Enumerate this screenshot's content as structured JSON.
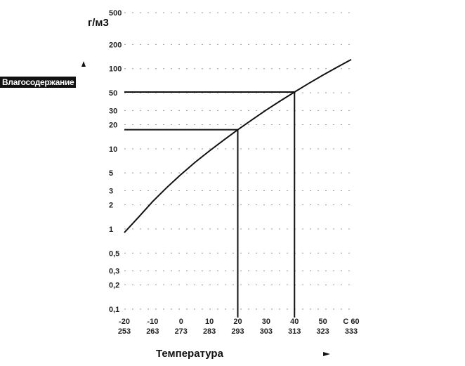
{
  "chart_data": {
    "type": "line",
    "ylabel": "Влагосодержание",
    "yunit": "г/м3",
    "xlabel": "Температура",
    "y_scale": "log",
    "ylim": [
      0.1,
      500
    ],
    "xlim": [
      -20,
      60
    ],
    "y_ticks": [
      {
        "value": 500,
        "label": "500"
      },
      {
        "value": 200,
        "label": "200"
      },
      {
        "value": 100,
        "label": "100"
      },
      {
        "value": 50,
        "label": "50"
      },
      {
        "value": 30,
        "label": "30"
      },
      {
        "value": 20,
        "label": "20"
      },
      {
        "value": 10,
        "label": "10"
      },
      {
        "value": 5,
        "label": "5"
      },
      {
        "value": 3,
        "label": "3"
      },
      {
        "value": 2,
        "label": "2"
      },
      {
        "value": 1,
        "label": "1"
      },
      {
        "value": 0.5,
        "label": "0,5"
      },
      {
        "value": 0.3,
        "label": "0,3"
      },
      {
        "value": 0.2,
        "label": "0,2"
      },
      {
        "value": 0.1,
        "label": "0,1"
      }
    ],
    "x_ticks": [
      {
        "value": -20,
        "celsius": "-20",
        "kelvin": "253"
      },
      {
        "value": -10,
        "celsius": "-10",
        "kelvin": "263"
      },
      {
        "value": 0,
        "celsius": "0",
        "kelvin": "273"
      },
      {
        "value": 10,
        "celsius": "10",
        "kelvin": "283"
      },
      {
        "value": 20,
        "celsius": "20",
        "kelvin": "293"
      },
      {
        "value": 30,
        "celsius": "30",
        "kelvin": "303"
      },
      {
        "value": 40,
        "celsius": "40",
        "kelvin": "313"
      },
      {
        "value": 50,
        "celsius": "50",
        "kelvin": "323"
      },
      {
        "value": 60,
        "celsius": "C 60",
        "kelvin": "333"
      }
    ],
    "series": [
      {
        "x": [
          -20,
          -15,
          -10,
          -5,
          0,
          5,
          10,
          15,
          20,
          25,
          30,
          35,
          40,
          45,
          50,
          55,
          60
        ],
        "y": [
          0.9,
          1.4,
          2.2,
          3.3,
          4.8,
          6.8,
          9.4,
          12.8,
          17.3,
          23,
          30.4,
          39.6,
          51.1,
          65.4,
          83,
          104.3,
          130
        ]
      }
    ],
    "guides": [
      {
        "x": 20,
        "y": 17.3
      },
      {
        "x": 40,
        "y": 51.1
      }
    ],
    "grid": true,
    "line_color": "#111111",
    "grid_color": "#9a9a9a"
  }
}
